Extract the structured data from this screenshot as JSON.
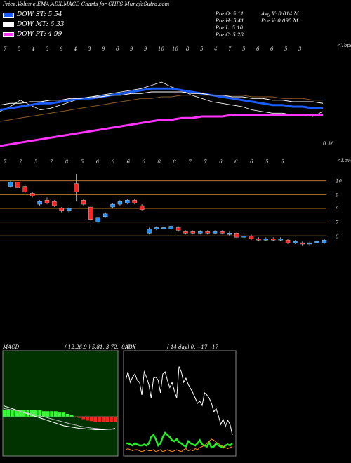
{
  "header": {
    "title": "Price,Volume,EMA,ADX,MACD Charts for CHFS MunafaSutra.com"
  },
  "dow": [
    {
      "label": "DOW ST: 5.54",
      "color": "#1a5cff"
    },
    {
      "label": "DOW MT: 6.33",
      "color": "#ffffff"
    },
    {
      "label": "DOW PT: 4.99",
      "color": "#ff33ff"
    }
  ],
  "stats": {
    "prev_open": "Pre  O: 5.11",
    "prev_high": "Pre  H: 5.41",
    "prev_low": "Pre  L: 5.10",
    "prev_close": "Pre  C: 5.28",
    "avg_vol": "Avg V: 0.014  M",
    "prev_vol": "Pre  V: 0.095 M"
  },
  "colors": {
    "ema_short": "#1a5cff",
    "ema_mid": "#ffffff",
    "ema_long": "#ff33ff",
    "ema_brown": "#8b5a2b",
    "bull_candle": "#1e90ff",
    "bear_candle": "#ff2020",
    "macd_histogram_pos": "#33ff33",
    "macd_histogram_neg": "#ff2020",
    "adx_line": "#ffffff",
    "adx_pdi": "#22ee22",
    "adx_mdi": "#ff8c00",
    "price_level_line": "#b8742a"
  },
  "chart_data": [
    {
      "type": "line",
      "name": "ema-panel",
      "side_labels": {
        "top": "<Tope",
        "bottom_value": "0.36"
      },
      "top_ticks": [
        "7",
        "5",
        "4",
        "3",
        "9",
        "4",
        "3",
        "9",
        "6",
        "9",
        "9",
        "10",
        "10",
        "8",
        "5",
        "4",
        "7",
        "5",
        "6",
        "6",
        "5",
        "3"
      ],
      "bottom_ticks": [
        "7",
        "7",
        "5",
        "7",
        "8",
        "5",
        "6",
        "6",
        "6",
        "6",
        "8",
        "8",
        "7",
        "7",
        "6",
        "6",
        "6",
        "5",
        "5"
      ],
      "series": [
        {
          "name": "price",
          "values": [
            5.2,
            5.5,
            5.9,
            5.6,
            5.3,
            5.4,
            5.6,
            5.8,
            6.0,
            6.1,
            6.2,
            6.3,
            6.4,
            6.5,
            6.6,
            6.8,
            7.0,
            6.7,
            6.5,
            6.2,
            6.0,
            5.8,
            5.7,
            5.6,
            5.5,
            5.3,
            5.2,
            5.1,
            5.1,
            5.0,
            5.0,
            4.9,
            5.2
          ]
        },
        {
          "name": "ema-short",
          "values": [
            5.3,
            5.4,
            5.5,
            5.6,
            5.7,
            5.7,
            5.8,
            5.9,
            6.0,
            6.0,
            6.1,
            6.2,
            6.3,
            6.4,
            6.5,
            6.6,
            6.6,
            6.6,
            6.5,
            6.4,
            6.3,
            6.2,
            6.1,
            6.0,
            5.9,
            5.8,
            5.7,
            5.6,
            5.6,
            5.5,
            5.5,
            5.4,
            5.4
          ]
        },
        {
          "name": "ema-mid",
          "values": [
            5.6,
            5.7,
            5.7,
            5.8,
            5.8,
            5.9,
            5.9,
            6.0,
            6.0,
            6.1,
            6.1,
            6.2,
            6.2,
            6.3,
            6.3,
            6.4,
            6.4,
            6.4,
            6.4,
            6.3,
            6.3,
            6.2,
            6.2,
            6.1,
            6.1,
            6.0,
            6.0,
            5.9,
            5.9,
            5.8,
            5.8,
            5.8,
            5.7
          ]
        },
        {
          "name": "ema-brown",
          "values": [
            4.6,
            4.7,
            4.8,
            4.9,
            5.0,
            5.1,
            5.2,
            5.3,
            5.4,
            5.5,
            5.6,
            5.7,
            5.8,
            5.9,
            6.0,
            6.0,
            6.1,
            6.1,
            6.2,
            6.2,
            6.2,
            6.2,
            6.2,
            6.2,
            6.2,
            6.1,
            6.1,
            6.1,
            6.0,
            6.0,
            6.0,
            5.9,
            5.9
          ]
        },
        {
          "name": "ema-long",
          "values": [
            3.1,
            3.2,
            3.3,
            3.4,
            3.5,
            3.6,
            3.7,
            3.8,
            3.9,
            4.0,
            4.1,
            4.2,
            4.3,
            4.4,
            4.5,
            4.6,
            4.7,
            4.7,
            4.8,
            4.8,
            4.9,
            4.9,
            4.9,
            5.0,
            5.0,
            5.0,
            5.0,
            5.0,
            5.0,
            5.0,
            5.0,
            5.0,
            5.0
          ]
        }
      ]
    },
    {
      "type": "candlestick",
      "name": "price-panel",
      "side_label": "<Lowe",
      "levels": [
        "10",
        "9",
        "8",
        "7",
        "6"
      ],
      "level_values": [
        10,
        9,
        8,
        7,
        6
      ],
      "ylim": [
        5.3,
        10.9
      ],
      "candles": [
        {
          "o": 9.6,
          "c": 9.9,
          "h": 10.0,
          "l": 9.5
        },
        {
          "o": 9.9,
          "c": 9.5,
          "h": 10.0,
          "l": 9.4
        },
        {
          "o": 9.6,
          "c": 9.2,
          "h": 9.7,
          "l": 9.1
        },
        {
          "o": 9.1,
          "c": 8.9,
          "h": 9.2,
          "l": 8.8
        },
        {
          "o": 8.3,
          "c": 8.5,
          "h": 8.6,
          "l": 8.2
        },
        {
          "o": 8.6,
          "c": 8.4,
          "h": 8.8,
          "l": 8.3
        },
        {
          "o": 8.5,
          "c": 8.2,
          "h": 8.6,
          "l": 8.1
        },
        {
          "o": 8.0,
          "c": 7.8,
          "h": 8.1,
          "l": 7.7
        },
        {
          "o": 7.8,
          "c": 8.0,
          "h": 8.1,
          "l": 7.7
        },
        {
          "o": 9.8,
          "c": 9.2,
          "h": 10.5,
          "l": 8.5
        },
        {
          "o": 8.6,
          "c": 8.3,
          "h": 8.7,
          "l": 8.2
        },
        {
          "o": 8.1,
          "c": 7.2,
          "h": 8.2,
          "l": 6.5
        },
        {
          "o": 7.0,
          "c": 7.3,
          "h": 7.4,
          "l": 6.9
        },
        {
          "o": 7.4,
          "c": 7.6,
          "h": 7.7,
          "l": 7.3
        },
        {
          "o": 8.1,
          "c": 8.3,
          "h": 8.4,
          "l": 8.0
        },
        {
          "o": 8.3,
          "c": 8.5,
          "h": 8.6,
          "l": 8.2
        },
        {
          "o": 8.4,
          "c": 8.6,
          "h": 8.7,
          "l": 8.3
        },
        {
          "o": 8.6,
          "c": 8.4,
          "h": 8.7,
          "l": 8.3
        },
        {
          "o": 8.2,
          "c": 7.9,
          "h": 8.3,
          "l": 7.8
        },
        {
          "o": 6.2,
          "c": 6.5,
          "h": 6.6,
          "l": 6.1
        },
        {
          "o": 6.5,
          "c": 6.6,
          "h": 6.7,
          "l": 6.4
        },
        {
          "o": 6.6,
          "c": 6.6,
          "h": 6.7,
          "l": 6.5
        },
        {
          "o": 6.5,
          "c": 6.7,
          "h": 6.8,
          "l": 6.4
        },
        {
          "o": 6.6,
          "c": 6.4,
          "h": 6.7,
          "l": 6.3
        },
        {
          "o": 6.3,
          "c": 6.2,
          "h": 6.4,
          "l": 6.1
        },
        {
          "o": 6.3,
          "c": 6.2,
          "h": 6.4,
          "l": 6.1
        },
        {
          "o": 6.2,
          "c": 6.3,
          "h": 6.4,
          "l": 6.1
        },
        {
          "o": 6.3,
          "c": 6.2,
          "h": 6.4,
          "l": 6.1
        },
        {
          "o": 6.2,
          "c": 6.3,
          "h": 6.4,
          "l": 6.1
        },
        {
          "o": 6.3,
          "c": 6.2,
          "h": 6.4,
          "l": 6.1
        },
        {
          "o": 6.1,
          "c": 6.2,
          "h": 6.3,
          "l": 6.0
        },
        {
          "o": 6.2,
          "c": 5.9,
          "h": 6.3,
          "l": 5.8
        },
        {
          "o": 5.9,
          "c": 6.0,
          "h": 6.1,
          "l": 5.8
        },
        {
          "o": 6.0,
          "c": 5.8,
          "h": 6.1,
          "l": 5.7
        },
        {
          "o": 5.8,
          "c": 5.7,
          "h": 5.9,
          "l": 5.6
        },
        {
          "o": 5.7,
          "c": 5.8,
          "h": 5.9,
          "l": 5.6
        },
        {
          "o": 5.8,
          "c": 5.7,
          "h": 5.9,
          "l": 5.6
        },
        {
          "o": 5.7,
          "c": 5.8,
          "h": 5.9,
          "l": 5.6
        },
        {
          "o": 5.7,
          "c": 5.5,
          "h": 5.8,
          "l": 5.4
        },
        {
          "o": 5.5,
          "c": 5.6,
          "h": 5.7,
          "l": 5.4
        },
        {
          "o": 5.5,
          "c": 5.4,
          "h": 5.6,
          "l": 5.3
        },
        {
          "o": 5.4,
          "c": 5.5,
          "h": 5.6,
          "l": 5.3
        },
        {
          "o": 5.5,
          "c": 5.6,
          "h": 5.7,
          "l": 5.4
        },
        {
          "o": 5.5,
          "c": 5.7,
          "h": 5.8,
          "l": 5.4
        }
      ]
    },
    {
      "type": "area",
      "name": "macd-panel",
      "title_label": "MACD",
      "title_params": "( 12,26,9 ) 5.81, 3.72, -0.41",
      "histogram": [
        0.5,
        0.5,
        0.5,
        0.5,
        0.5,
        0.5,
        0.5,
        0.5,
        0.5,
        0.5,
        0.4,
        0.4,
        0.4,
        0.4,
        0.3,
        0.3,
        0.2,
        0.1,
        -0.05,
        -0.1,
        -0.2,
        -0.3,
        -0.35,
        -0.4,
        -0.4,
        -0.4,
        -0.4,
        -0.4,
        -0.41
      ],
      "macd_line": [
        0.8,
        0.7,
        0.6,
        0.5,
        0.4,
        0.3,
        0.2,
        0.1,
        0.0,
        -0.1,
        -0.2,
        -0.3,
        -0.4,
        -0.5,
        -0.6,
        -0.7,
        -0.75,
        -0.8,
        -0.85,
        -0.9,
        -0.92,
        -0.95,
        -0.97,
        -1.0,
        -1.0,
        -1.0,
        -0.98,
        -0.96,
        -0.9
      ],
      "signal_line": [
        0.6,
        0.55,
        0.5,
        0.45,
        0.4,
        0.33,
        0.26,
        0.19,
        0.12,
        0.05,
        -0.02,
        -0.1,
        -0.18,
        -0.26,
        -0.34,
        -0.42,
        -0.5,
        -0.58,
        -0.65,
        -0.72,
        -0.78,
        -0.83,
        -0.87,
        -0.9,
        -0.93,
        -0.95,
        -0.96,
        -0.96,
        -0.95
      ],
      "ylim": [
        -3,
        5
      ]
    },
    {
      "type": "line",
      "name": "adx-panel",
      "title_label": "ADX",
      "title_params": "( 14  day) 0, +17, -17",
      "ylim": [
        0,
        100
      ],
      "series": [
        {
          "name": "adx",
          "values": [
            72,
            80,
            70,
            75,
            78,
            72,
            70,
            58,
            80,
            75,
            68,
            55,
            74,
            75,
            72,
            60,
            78,
            80,
            72,
            65,
            70,
            62,
            55,
            85,
            80,
            70,
            74,
            68,
            64,
            60,
            55,
            50,
            52,
            48,
            60,
            58,
            55,
            50,
            42,
            45,
            38,
            30,
            35,
            28,
            34,
            30,
            20
          ]
        },
        {
          "name": "plus-di",
          "values": [
            12,
            12,
            11,
            10,
            12,
            11,
            10,
            10,
            11,
            10,
            12,
            18,
            20,
            16,
            10,
            12,
            18,
            22,
            20,
            18,
            15,
            14,
            16,
            13,
            12,
            10,
            9,
            14,
            12,
            11,
            10,
            12,
            15,
            11,
            10,
            9,
            13,
            8,
            9,
            12,
            10,
            9,
            8,
            10,
            11,
            10,
            12
          ]
        },
        {
          "name": "minus-di",
          "values": [
            6,
            7,
            6,
            5,
            6,
            6,
            5,
            4,
            5,
            6,
            5,
            5,
            6,
            4,
            5,
            6,
            4,
            5,
            6,
            5,
            4,
            5,
            6,
            5,
            4,
            6,
            7,
            5,
            6,
            5,
            7,
            6,
            8,
            9,
            10,
            12,
            14,
            16,
            15,
            13,
            12,
            10,
            9,
            8,
            7,
            8,
            9
          ]
        }
      ]
    }
  ]
}
